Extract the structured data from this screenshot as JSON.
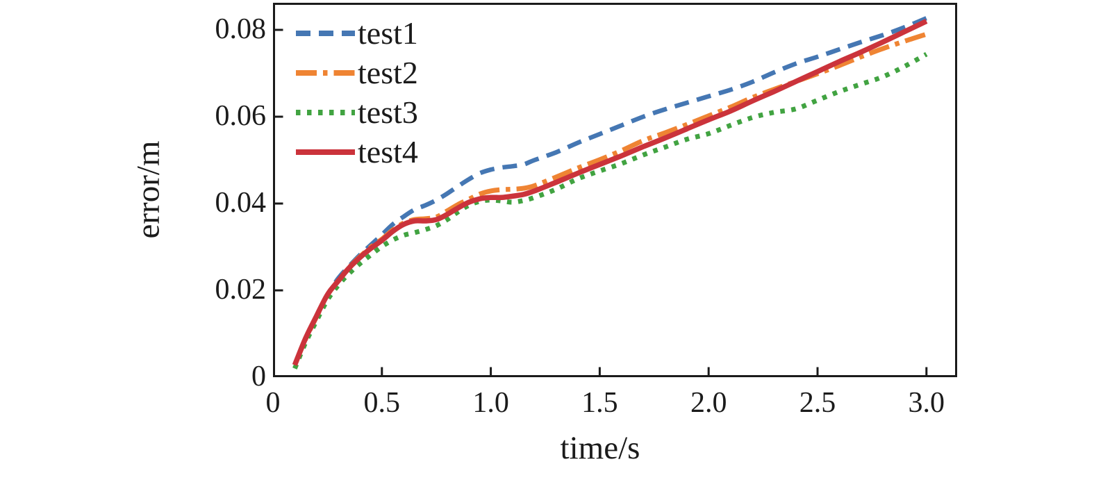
{
  "figure": {
    "background": "#ffffff",
    "axis_color": "#1b1b1b"
  },
  "chart_data": {
    "type": "line",
    "title": "",
    "xlabel": "time/s",
    "ylabel": "error/m",
    "xlim": [
      0,
      3.141
    ],
    "ylim": [
      0,
      0.08624
    ],
    "grid": false,
    "legend_position": "upper-left",
    "tick_direction": "in",
    "x_ticks": [
      {
        "v": 0,
        "label": "0"
      },
      {
        "v": 0.5,
        "label": "0.5"
      },
      {
        "v": 1.0,
        "label": "1.0"
      },
      {
        "v": 1.5,
        "label": "1.5"
      },
      {
        "v": 2.0,
        "label": "2.0"
      },
      {
        "v": 2.5,
        "label": "2.5"
      },
      {
        "v": 3.0,
        "label": "3.0"
      }
    ],
    "y_ticks": [
      {
        "v": 0,
        "label": "0"
      },
      {
        "v": 0.02,
        "label": "0.02"
      },
      {
        "v": 0.04,
        "label": "0.04"
      },
      {
        "v": 0.06,
        "label": "0.06"
      },
      {
        "v": 0.08,
        "label": "0.08"
      }
    ],
    "x": [
      0.1,
      0.15,
      0.2,
      0.25,
      0.3,
      0.35,
      0.4,
      0.45,
      0.5,
      0.55,
      0.6,
      0.65,
      0.7,
      0.75,
      0.8,
      0.85,
      0.9,
      0.95,
      1.0,
      1.05,
      1.1,
      1.15,
      1.2,
      1.3,
      1.4,
      1.5,
      1.6,
      1.7,
      1.8,
      1.9,
      2.0,
      2.1,
      2.2,
      2.3,
      2.4,
      2.5,
      2.6,
      2.7,
      2.8,
      2.9,
      3.0
    ],
    "series": [
      {
        "name": "test1",
        "color": "#4577b3",
        "linestyle": "dashed",
        "width": 6.5,
        "values": [
          0.003,
          0.009,
          0.0142,
          0.019,
          0.0228,
          0.0256,
          0.0282,
          0.0305,
          0.0328,
          0.0352,
          0.037,
          0.0386,
          0.0396,
          0.0408,
          0.0423,
          0.044,
          0.0456,
          0.047,
          0.0478,
          0.0483,
          0.0486,
          0.049,
          0.05,
          0.0518,
          0.054,
          0.056,
          0.058,
          0.06,
          0.0617,
          0.0632,
          0.0647,
          0.0662,
          0.068,
          0.0702,
          0.0722,
          0.0738,
          0.0755,
          0.0772,
          0.0788,
          0.0806,
          0.0827
        ]
      },
      {
        "name": "test2",
        "color": "#ef8433",
        "linestyle": "dashdot",
        "width": 7,
        "values": [
          0.0028,
          0.0088,
          0.0139,
          0.0189,
          0.0223,
          0.0253,
          0.0278,
          0.03,
          0.0318,
          0.0339,
          0.0355,
          0.0363,
          0.0365,
          0.0369,
          0.0383,
          0.0398,
          0.041,
          0.0422,
          0.0429,
          0.0432,
          0.0433,
          0.0435,
          0.0441,
          0.0461,
          0.0482,
          0.0501,
          0.0522,
          0.0545,
          0.0563,
          0.0582,
          0.0602,
          0.0622,
          0.0644,
          0.0663,
          0.0681,
          0.0699,
          0.0718,
          0.0738,
          0.0757,
          0.0774,
          0.079
        ]
      },
      {
        "name": "test3",
        "color": "#41a341",
        "linestyle": "dotted",
        "width": 7,
        "values": [
          0.002,
          0.008,
          0.013,
          0.0178,
          0.0212,
          0.0239,
          0.0262,
          0.0282,
          0.0301,
          0.0316,
          0.0327,
          0.0333,
          0.034,
          0.0349,
          0.0363,
          0.0381,
          0.0396,
          0.0405,
          0.0408,
          0.0406,
          0.0403,
          0.0407,
          0.0414,
          0.0433,
          0.0457,
          0.0475,
          0.0492,
          0.0512,
          0.053,
          0.0548,
          0.0561,
          0.058,
          0.0598,
          0.061,
          0.0618,
          0.0638,
          0.0658,
          0.0675,
          0.0692,
          0.0716,
          0.0744
        ]
      },
      {
        "name": "test4",
        "color": "#cb333b",
        "linestyle": "solid",
        "width": 7.5,
        "values": [
          0.0028,
          0.009,
          0.0141,
          0.019,
          0.0222,
          0.0252,
          0.0276,
          0.0297,
          0.0315,
          0.0336,
          0.0352,
          0.036,
          0.036,
          0.0363,
          0.0375,
          0.039,
          0.0403,
          0.0411,
          0.0414,
          0.0414,
          0.0417,
          0.0421,
          0.0429,
          0.0449,
          0.047,
          0.049,
          0.051,
          0.0531,
          0.0551,
          0.0572,
          0.0593,
          0.0613,
          0.0636,
          0.0658,
          0.0681,
          0.0704,
          0.0727,
          0.0749,
          0.0772,
          0.0796,
          0.082
        ]
      }
    ]
  }
}
